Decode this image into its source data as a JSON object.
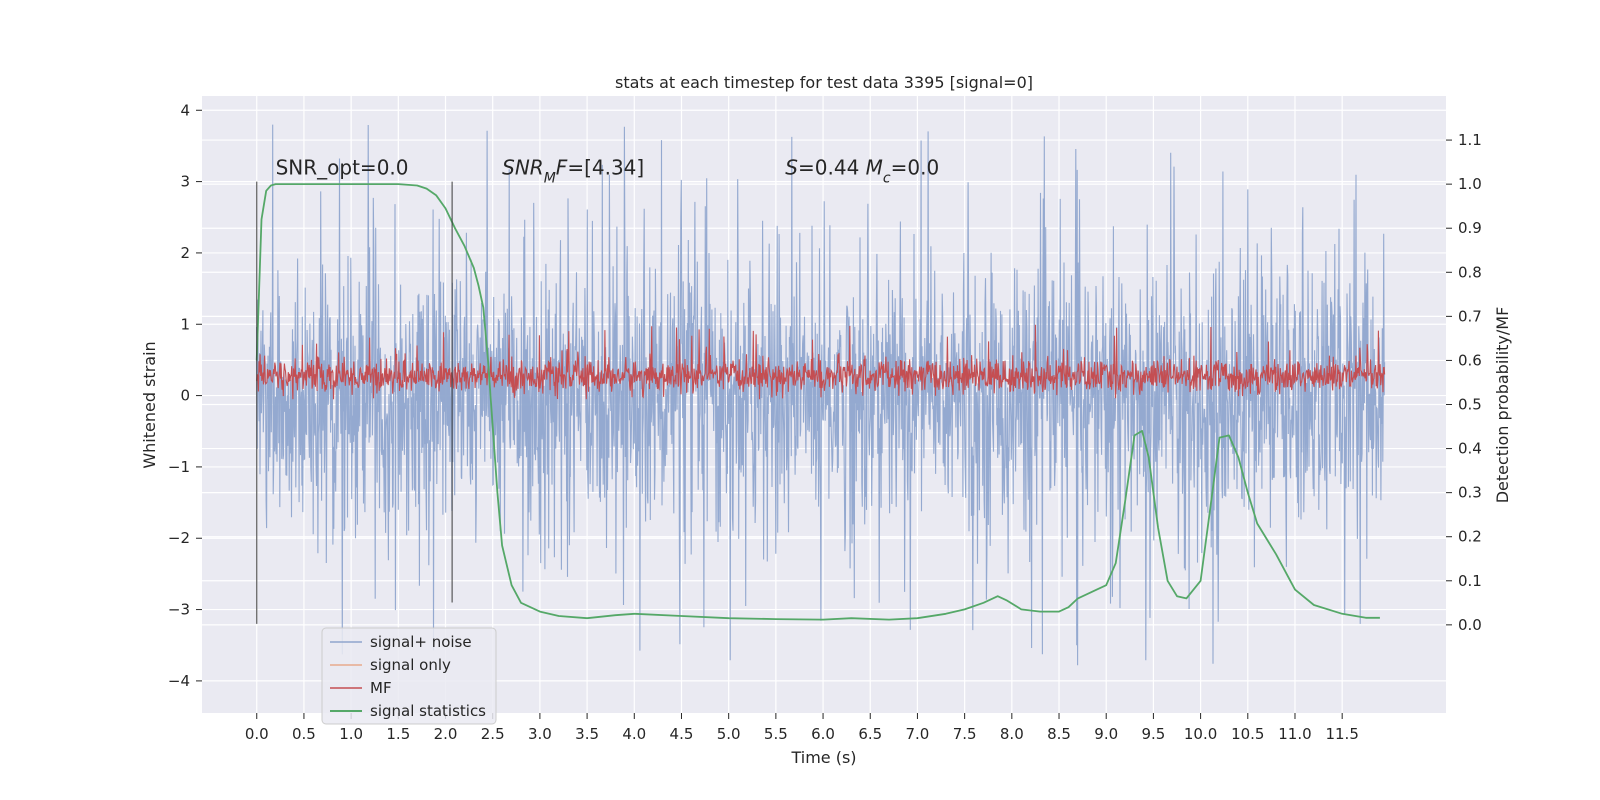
{
  "chart_data": {
    "type": "line",
    "title": "stats at each timestep for test data 3395 [signal=0]",
    "xlabel": "Time (s)",
    "ylabel_left": "Whitened strain",
    "ylabel_right": "Detection probability/MF",
    "xlim": [
      -0.58,
      12.6
    ],
    "ylim_left": [
      -4.45,
      4.2
    ],
    "ylim_right": [
      -0.2,
      1.2
    ],
    "x_ticks": [
      "0.0",
      "0.5",
      "1.0",
      "1.5",
      "2.0",
      "2.5",
      "3.0",
      "3.5",
      "4.0",
      "4.5",
      "5.0",
      "5.5",
      "6.0",
      "6.5",
      "7.0",
      "7.5",
      "8.0",
      "8.5",
      "9.0",
      "9.5",
      "10.0",
      "10.5",
      "11.0",
      "11.5"
    ],
    "y_ticks_left": [
      "−4",
      "−3",
      "−2",
      "−1",
      "0",
      "1",
      "2",
      "3",
      "4"
    ],
    "y_ticks_right": [
      "0.0",
      "0.1",
      "0.2",
      "0.3",
      "0.4",
      "0.5",
      "0.6",
      "0.7",
      "0.8",
      "0.9",
      "1.0",
      "1.1"
    ],
    "grid": true,
    "legend_position": "lower-left",
    "annotations": [
      {
        "x": 0.2,
        "y": 3.1,
        "text_parts": [
          {
            "t": "SNR_opt=0.0",
            "style": "normal"
          }
        ]
      },
      {
        "x": 2.6,
        "y": 3.1,
        "text_parts": [
          {
            "t": "SNR",
            "style": "italic"
          },
          {
            "t": "M",
            "style": "italic-sub"
          },
          {
            "t": "F",
            "style": "italic"
          },
          {
            "t": "=[4.34]",
            "style": "normal"
          }
        ]
      },
      {
        "x": 5.6,
        "y": 3.1,
        "text_parts": [
          {
            "t": "S",
            "style": "italic"
          },
          {
            "t": "=0.44   ",
            "style": "normal"
          },
          {
            "t": "M",
            "style": "italic"
          },
          {
            "t": "c",
            "style": "italic-sub"
          },
          {
            "t": "=0.0",
            "style": "normal"
          }
        ]
      }
    ],
    "vlines": [
      {
        "x": 0.0,
        "y0": -3.2,
        "y1": 3.0
      },
      {
        "x": 2.07,
        "y0": -2.9,
        "y1": 3.0
      }
    ],
    "series": [
      {
        "name": "signal+ noise",
        "color": "#8fa5cd",
        "axis": "left",
        "kind": "noise",
        "x_range": [
          0.0,
          11.95
        ],
        "band_sigma": 1.0,
        "spike_max": 3.85,
        "spike_min": -3.9
      },
      {
        "name": "signal only",
        "color": "#e8a98c",
        "axis": "left",
        "kind": "flat",
        "values": []
      },
      {
        "name": "MF",
        "color": "#c44e52",
        "axis": "left",
        "kind": "mf",
        "x_range": [
          0.0,
          11.95
        ],
        "center": 0.27,
        "spike_max": 1.0,
        "spike_min": -0.05
      },
      {
        "name": "signal statistics",
        "color": "#55a868",
        "axis": "right",
        "kind": "line",
        "x": [
          0.0,
          0.05,
          0.1,
          0.15,
          0.2,
          0.3,
          0.5,
          1.0,
          1.5,
          1.7,
          1.8,
          1.9,
          2.0,
          2.1,
          2.2,
          2.3,
          2.35,
          2.4,
          2.45,
          2.5,
          2.55,
          2.6,
          2.7,
          2.8,
          3.0,
          3.2,
          3.5,
          3.8,
          4.0,
          4.5,
          5.0,
          5.5,
          6.0,
          6.3,
          6.7,
          7.0,
          7.3,
          7.5,
          7.7,
          7.85,
          7.95,
          8.1,
          8.3,
          8.5,
          8.6,
          8.7,
          8.9,
          9.0,
          9.1,
          9.2,
          9.3,
          9.38,
          9.45,
          9.55,
          9.65,
          9.75,
          9.85,
          10.0,
          10.1,
          10.2,
          10.3,
          10.4,
          10.5,
          10.6,
          10.8,
          11.0,
          11.2,
          11.5,
          11.75,
          11.9
        ],
        "y": [
          0.6,
          0.92,
          0.985,
          0.997,
          1.0,
          1.0,
          1.0,
          1.0,
          1.0,
          0.997,
          0.99,
          0.975,
          0.945,
          0.9,
          0.86,
          0.81,
          0.77,
          0.72,
          0.6,
          0.45,
          0.3,
          0.18,
          0.09,
          0.05,
          0.03,
          0.02,
          0.015,
          0.022,
          0.025,
          0.02,
          0.015,
          0.013,
          0.012,
          0.015,
          0.012,
          0.015,
          0.025,
          0.035,
          0.05,
          0.065,
          0.055,
          0.035,
          0.03,
          0.03,
          0.04,
          0.06,
          0.08,
          0.09,
          0.14,
          0.28,
          0.43,
          0.44,
          0.38,
          0.22,
          0.1,
          0.065,
          0.06,
          0.1,
          0.26,
          0.425,
          0.43,
          0.38,
          0.3,
          0.23,
          0.16,
          0.08,
          0.045,
          0.025,
          0.016,
          0.016
        ]
      }
    ]
  }
}
